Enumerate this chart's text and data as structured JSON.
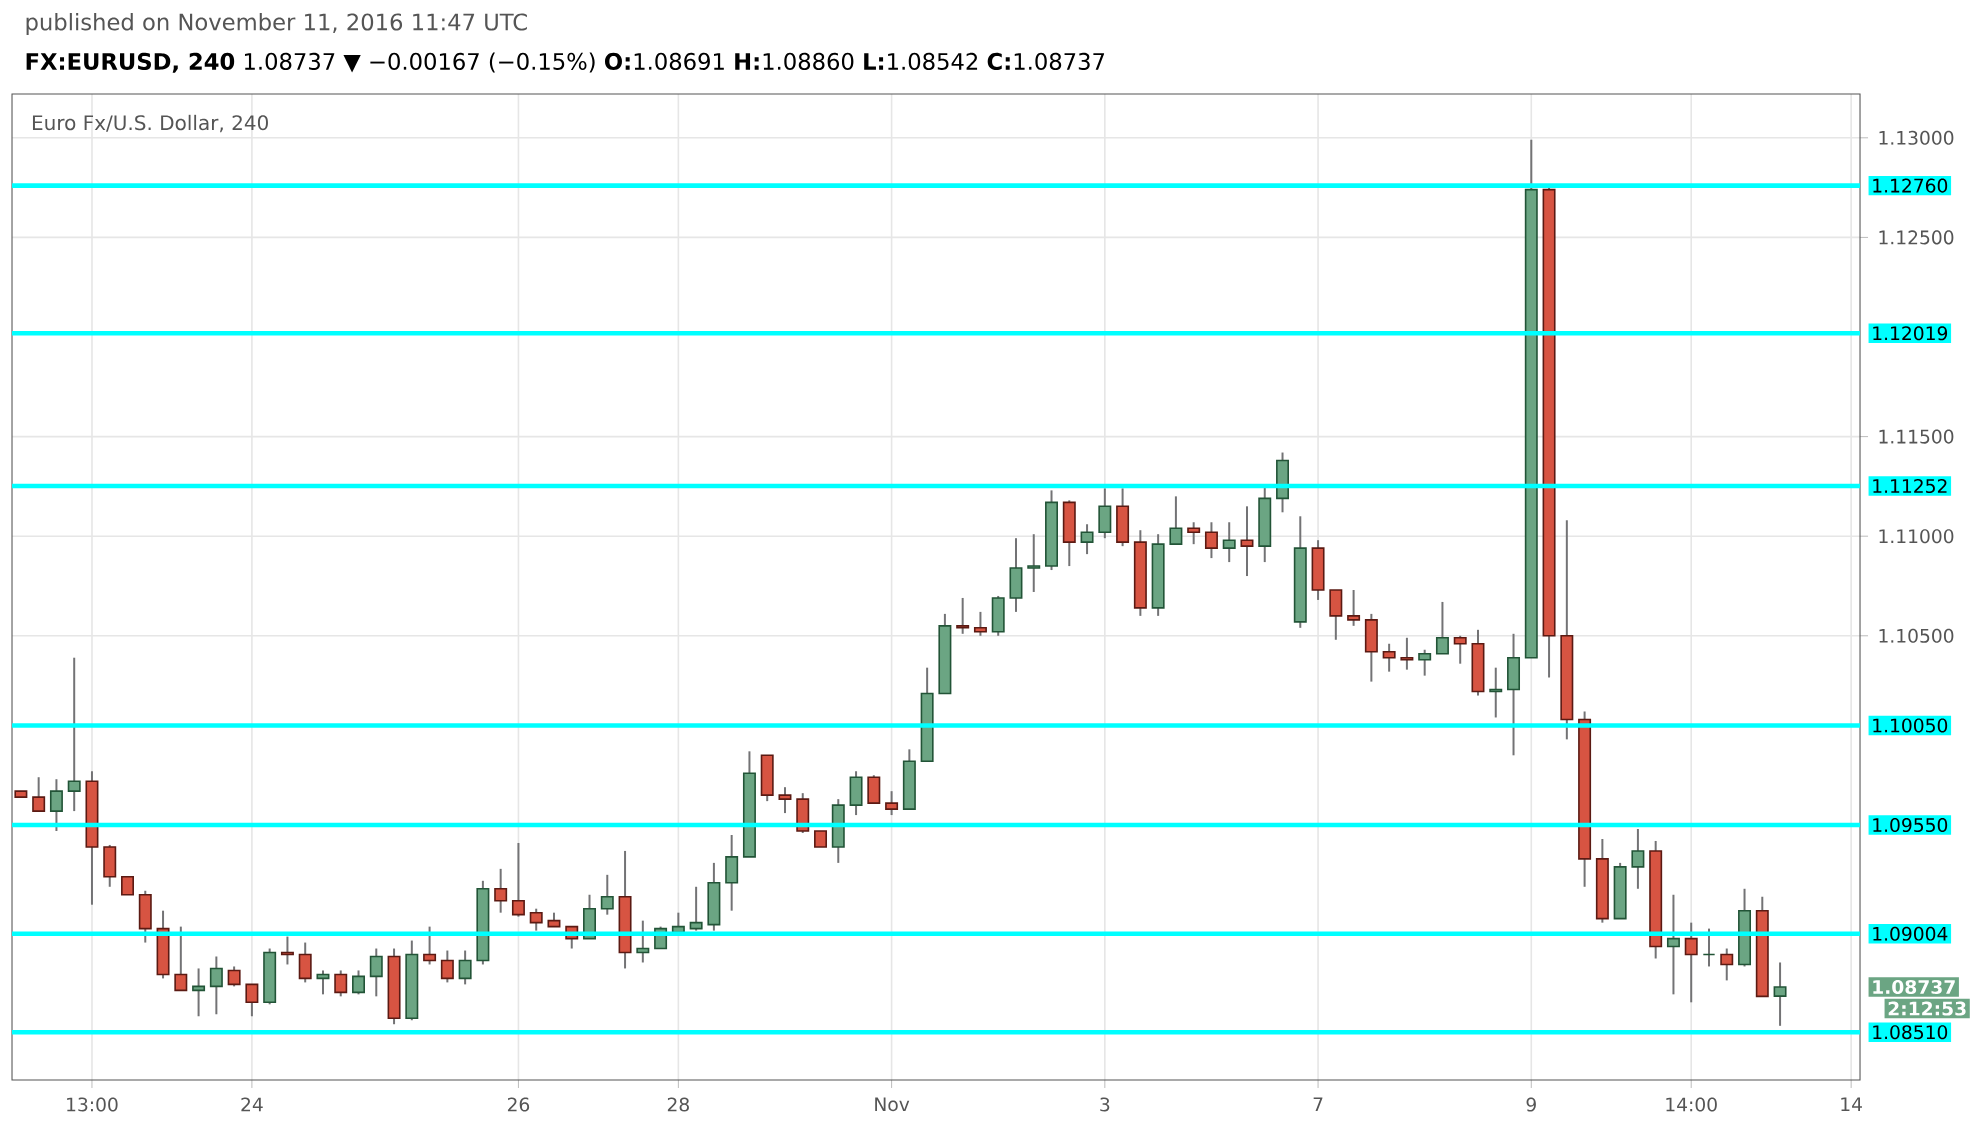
{
  "chart_data": {
    "type": "candlestick",
    "subtitle": "published on November 11, 2016 11:47 UTC",
    "title": "**FX:EURUSD, 240** 1.08737 ▼ −0.00167 (−0.15%) **O:**1.08691 **H:**1.08860 **L:**1.08542 **C:**1.08737",
    "categories": [
      null,
      null,
      null,
      null,
      "13:00",
      null,
      null,
      null,
      null,
      null,
      null,
      null,
      null,
      "24",
      null,
      null,
      null,
      null,
      null,
      null,
      null,
      null,
      null,
      null,
      null,
      null,
      null,
      null,
      "26",
      null,
      null,
      null,
      null,
      null,
      null,
      null,
      null,
      "28",
      null,
      null,
      null,
      null,
      null,
      null,
      null,
      null,
      null,
      null,
      null,
      "Nov",
      null,
      null,
      null,
      null,
      null,
      null,
      null,
      null,
      null,
      null,
      null,
      "3",
      null,
      null,
      null,
      null,
      null,
      null,
      null,
      null,
      null,
      null,
      null,
      "7",
      null,
      null,
      null,
      null,
      null,
      null,
      null,
      null,
      null,
      null,
      null,
      "9",
      null,
      null,
      null,
      null,
      null,
      null,
      null,
      null,
      "14:00",
      null,
      null,
      null,
      null,
      null,
      null,
      null,
      null,
      "14"
    ],
    "ohlc": [
      [
        1.0972,
        1.0972,
        1.0969,
        1.0969
      ],
      [
        1.0969,
        1.0979,
        1.0962,
        1.0962
      ],
      [
        1.0962,
        1.0978,
        1.0952,
        1.0972
      ],
      [
        1.0972,
        1.1039,
        1.0962,
        1.0977
      ],
      [
        1.0977,
        1.0982,
        1.0915,
        1.0944
      ],
      [
        1.0944,
        1.0945,
        1.0924,
        1.0929
      ],
      [
        1.0929,
        1.0929,
        1.092,
        1.092
      ],
      [
        1.092,
        1.0922,
        1.0896,
        1.0903
      ],
      [
        1.0903,
        1.0912,
        1.0878,
        1.088
      ],
      [
        1.088,
        1.0904,
        1.0872,
        1.0872
      ],
      [
        1.0872,
        1.0883,
        1.0859,
        1.0874
      ],
      [
        1.0874,
        1.0889,
        1.086,
        1.0883
      ],
      [
        1.0882,
        1.0884,
        1.0874,
        1.0875
      ],
      [
        1.0875,
        1.0875,
        1.0859,
        1.0866
      ],
      [
        1.0866,
        1.0893,
        1.0865,
        1.0891
      ],
      [
        1.0891,
        1.0899,
        1.0885,
        1.089
      ],
      [
        1.089,
        1.0896,
        1.0876,
        1.0878
      ],
      [
        1.0878,
        1.0882,
        1.087,
        1.088
      ],
      [
        1.088,
        1.0882,
        1.0869,
        1.0871
      ],
      [
        1.0871,
        1.0882,
        1.087,
        1.0879
      ],
      [
        1.0879,
        1.0893,
        1.0869,
        1.0889
      ],
      [
        1.0889,
        1.0893,
        1.0855,
        1.0858
      ],
      [
        1.0858,
        1.0897,
        1.0857,
        1.089
      ],
      [
        1.089,
        1.0904,
        1.0885,
        1.0887
      ],
      [
        1.0887,
        1.0892,
        1.0876,
        1.0878
      ],
      [
        1.0878,
        1.0892,
        1.0875,
        1.0887
      ],
      [
        1.0887,
        1.0927,
        1.0885,
        1.0923
      ],
      [
        1.0923,
        1.0933,
        1.0911,
        1.0917
      ],
      [
        1.0917,
        1.0946,
        1.0909,
        1.091
      ],
      [
        1.0911,
        1.0913,
        1.0902,
        1.0906
      ],
      [
        1.0907,
        1.0911,
        1.0904,
        1.0904
      ],
      [
        1.0904,
        1.0904,
        1.0893,
        1.0898
      ],
      [
        1.0898,
        1.092,
        1.0898,
        1.0913
      ],
      [
        1.0913,
        1.093,
        1.091,
        1.0919
      ],
      [
        1.0919,
        1.0942,
        1.0883,
        1.0891
      ],
      [
        1.0891,
        1.0907,
        1.0886,
        1.0893
      ],
      [
        1.0893,
        1.0904,
        1.0893,
        1.0903
      ],
      [
        1.0901,
        1.0911,
        1.0901,
        1.0904
      ],
      [
        1.0903,
        1.0924,
        1.0902,
        1.0906
      ],
      [
        1.0905,
        1.0936,
        1.0902,
        1.0926
      ],
      [
        1.0926,
        1.095,
        1.0912,
        1.0939
      ],
      [
        1.0939,
        1.0992,
        1.0939,
        1.0981
      ],
      [
        1.099,
        1.099,
        1.0967,
        1.097
      ],
      [
        1.097,
        1.0974,
        1.0961,
        1.0968
      ],
      [
        1.0968,
        1.0971,
        1.0951,
        1.0952
      ],
      [
        1.0952,
        1.0952,
        1.0944,
        1.0944
      ],
      [
        1.0944,
        1.0968,
        1.0936,
        1.0965
      ],
      [
        1.0965,
        1.0982,
        1.096,
        1.0979
      ],
      [
        1.0979,
        1.098,
        1.0966,
        1.0966
      ],
      [
        1.0966,
        1.0972,
        1.096,
        1.0963
      ],
      [
        1.0963,
        1.0993,
        1.0963,
        1.0987
      ],
      [
        1.0987,
        1.1034,
        1.0987,
        1.1021
      ],
      [
        1.1021,
        1.1061,
        1.1021,
        1.1055
      ],
      [
        1.1055,
        1.1069,
        1.1051,
        1.1054
      ],
      [
        1.1054,
        1.1062,
        1.105,
        1.1052
      ],
      [
        1.1052,
        1.107,
        1.105,
        1.1069
      ],
      [
        1.1069,
        1.1099,
        1.1062,
        1.1084
      ],
      [
        1.1084,
        1.1101,
        1.1072,
        1.1085
      ],
      [
        1.1085,
        1.1123,
        1.1083,
        1.1117
      ],
      [
        1.1117,
        1.1118,
        1.1085,
        1.1097
      ],
      [
        1.1097,
        1.1106,
        1.1091,
        1.1102
      ],
      [
        1.1102,
        1.1124,
        1.1099,
        1.1115
      ],
      [
        1.1115,
        1.1124,
        1.1095,
        1.1097
      ],
      [
        1.1097,
        1.1103,
        1.106,
        1.1064
      ],
      [
        1.1064,
        1.1101,
        1.106,
        1.1096
      ],
      [
        1.1096,
        1.112,
        1.1096,
        1.1104
      ],
      [
        1.1104,
        1.1107,
        1.1096,
        1.1102
      ],
      [
        1.1102,
        1.1107,
        1.1089,
        1.1094
      ],
      [
        1.1094,
        1.1107,
        1.1087,
        1.1098
      ],
      [
        1.1098,
        1.1115,
        1.108,
        1.1095
      ],
      [
        1.1095,
        1.1125,
        1.1087,
        1.1119
      ],
      [
        1.1119,
        1.1142,
        1.1112,
        1.1138
      ],
      [
        1.1057,
        1.111,
        1.1054,
        1.1094
      ],
      [
        1.1094,
        1.1098,
        1.1068,
        1.1073
      ],
      [
        1.1073,
        1.1073,
        1.1048,
        1.106
      ],
      [
        1.106,
        1.1073,
        1.1055,
        1.1058
      ],
      [
        1.1058,
        1.1061,
        1.1027,
        1.1042
      ],
      [
        1.1042,
        1.1046,
        1.1032,
        1.1039
      ],
      [
        1.1039,
        1.1049,
        1.1033,
        1.1038
      ],
      [
        1.1038,
        1.1043,
        1.103,
        1.1041
      ],
      [
        1.1041,
        1.1067,
        1.1041,
        1.1049
      ],
      [
        1.1049,
        1.105,
        1.1036,
        1.1046
      ],
      [
        1.1046,
        1.1053,
        1.102,
        1.1022
      ],
      [
        1.1022,
        1.1034,
        1.1009,
        1.1023
      ],
      [
        1.1023,
        1.1051,
        1.099,
        1.1039
      ],
      [
        1.1039,
        1.1299,
        1.1039,
        1.1274
      ],
      [
        1.1274,
        1.1275,
        1.1029,
        1.105
      ],
      [
        1.105,
        1.1108,
        1.0998,
        1.1008
      ],
      [
        1.1008,
        1.1012,
        1.0924,
        1.0938
      ],
      [
        1.0938,
        1.0948,
        1.0906,
        1.0908
      ],
      [
        1.0908,
        1.0936,
        1.0908,
        1.0934
      ],
      [
        1.0934,
        1.0953,
        1.0923,
        1.0942
      ],
      [
        1.0942,
        1.0947,
        1.0888,
        1.0894
      ],
      [
        1.0894,
        1.092,
        1.087,
        1.0898
      ],
      [
        1.0898,
        1.0906,
        1.0866,
        1.089
      ],
      [
        1.089,
        1.0903,
        1.0884,
        1.089
      ],
      [
        1.089,
        1.0893,
        1.0877,
        1.0885
      ],
      [
        1.0885,
        1.0923,
        1.0884,
        1.0912
      ],
      [
        1.0912,
        1.0919,
        1.0869,
        1.0869
      ],
      [
        1.08691,
        1.0886,
        1.08542,
        1.08737
      ],
      null,
      null,
      null,
      null
    ],
    "ylim": [
      1.0827,
      1.1322
    ],
    "yticks": [
      {
        "value": 1.105,
        "label": "1.10500"
      },
      {
        "value": 1.11,
        "label": "1.11000"
      },
      {
        "value": 1.115,
        "label": "1.11500"
      },
      {
        "value": 1.125,
        "label": "1.12500"
      },
      {
        "value": 1.13,
        "label": "1.13000"
      }
    ],
    "grid": true,
    "ref_lines": [
      {
        "axis": "y",
        "value": 1.1276,
        "label": "1.12760",
        "color": "#00ffff"
      },
      {
        "axis": "y",
        "value": 1.12019,
        "label": "1.12019",
        "color": "#00ffff"
      },
      {
        "axis": "y",
        "value": 1.11252,
        "label": "1.11252",
        "color": "#00ffff"
      },
      {
        "axis": "y",
        "value": 1.1005,
        "label": "1.10050",
        "color": "#00ffff"
      },
      {
        "axis": "y",
        "value": 1.0955,
        "label": "1.09550",
        "color": "#00ffff"
      },
      {
        "axis": "y",
        "value": 1.09004,
        "label": "1.09004",
        "color": "#00ffff"
      },
      {
        "axis": "y",
        "value": 1.0851,
        "label": "1.08510",
        "color": "#00ffff"
      }
    ],
    "annotations": [
      "Euro Fx/U.S. Dollar, 240",
      "1.08737",
      "2:12:53"
    ]
  }
}
